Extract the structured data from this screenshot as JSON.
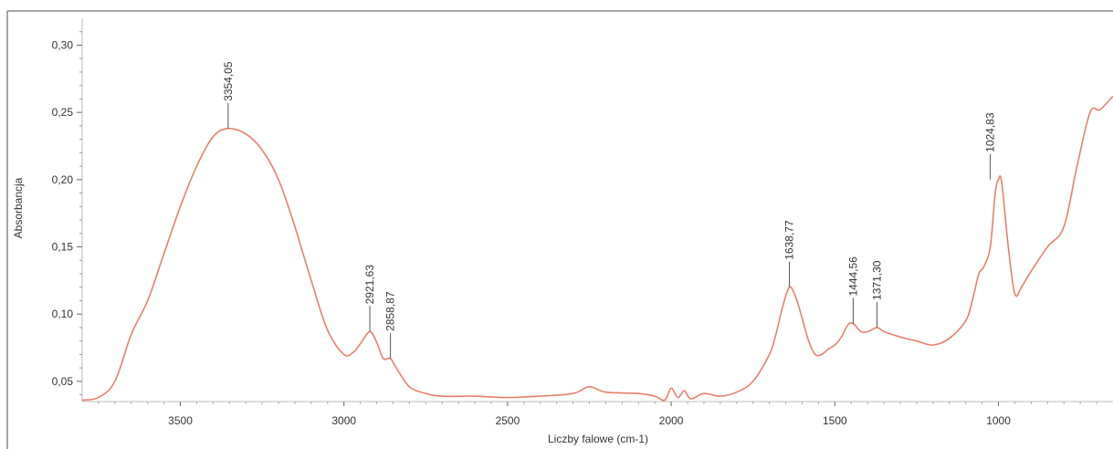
{
  "chart_data": {
    "type": "line",
    "title": "",
    "xlabel": "Liczby falowe (cm-1)",
    "ylabel": "Absorbancja",
    "xlim": [
      3800,
      650
    ],
    "ylim": [
      0.035,
      0.32
    ],
    "x_reversed": true,
    "x_ticks": [
      3500,
      3000,
      2500,
      2000,
      1500,
      1000
    ],
    "x_tick_labels": [
      "3500",
      "3000",
      "2500",
      "2000",
      "1500",
      "1000"
    ],
    "y_ticks": [
      0.05,
      0.1,
      0.15,
      0.2,
      0.25,
      0.3
    ],
    "y_tick_labels": [
      "0,05",
      "0,10",
      "0,15",
      "0,20",
      "0,25",
      "0,30"
    ],
    "grid": false,
    "line_color": "#e8806a",
    "series": [
      {
        "x": [
          3800,
          3750,
          3700,
          3650,
          3600,
          3550,
          3500,
          3450,
          3400,
          3354,
          3300,
          3250,
          3200,
          3150,
          3100,
          3050,
          3000,
          2970,
          2950,
          2921,
          2900,
          2880,
          2858,
          2840,
          2800,
          2750,
          2700,
          2600,
          2500,
          2400,
          2300,
          2250,
          2200,
          2100,
          2050,
          2020,
          2000,
          1980,
          1960,
          1940,
          1900,
          1850,
          1800,
          1750,
          1700,
          1680,
          1660,
          1639,
          1620,
          1600,
          1580,
          1560,
          1540,
          1520,
          1500,
          1480,
          1460,
          1444,
          1420,
          1400,
          1371,
          1350,
          1300,
          1250,
          1200,
          1150,
          1100,
          1080,
          1060,
          1045,
          1025,
          1010,
          1000,
          990,
          970,
          950,
          930,
          900,
          850,
          800,
          760,
          720,
          690,
          650
        ],
        "y": [
          0.036,
          0.038,
          0.05,
          0.085,
          0.11,
          0.145,
          0.18,
          0.21,
          0.232,
          0.238,
          0.234,
          0.222,
          0.2,
          0.165,
          0.125,
          0.088,
          0.07,
          0.072,
          0.078,
          0.087,
          0.079,
          0.067,
          0.067,
          0.06,
          0.046,
          0.041,
          0.039,
          0.039,
          0.038,
          0.039,
          0.041,
          0.046,
          0.042,
          0.041,
          0.039,
          0.036,
          0.045,
          0.038,
          0.043,
          0.037,
          0.041,
          0.039,
          0.042,
          0.05,
          0.07,
          0.085,
          0.105,
          0.12,
          0.113,
          0.097,
          0.08,
          0.07,
          0.07,
          0.074,
          0.077,
          0.083,
          0.092,
          0.093,
          0.087,
          0.087,
          0.09,
          0.087,
          0.083,
          0.08,
          0.077,
          0.082,
          0.095,
          0.11,
          0.13,
          0.135,
          0.15,
          0.19,
          0.2,
          0.198,
          0.15,
          0.115,
          0.12,
          0.132,
          0.15,
          0.165,
          0.21,
          0.25,
          0.252,
          0.262
        ]
      }
    ],
    "annotations": [
      {
        "x": 3354,
        "y": 0.238,
        "label": "3354,05"
      },
      {
        "x": 2921,
        "y": 0.087,
        "label": "2921,63"
      },
      {
        "x": 2858,
        "y": 0.067,
        "label": "2858,87"
      },
      {
        "x": 1639,
        "y": 0.12,
        "label": "1638,77"
      },
      {
        "x": 1444,
        "y": 0.093,
        "label": "1444,56"
      },
      {
        "x": 1371,
        "y": 0.09,
        "label": "1371,30"
      },
      {
        "x": 1025,
        "y": 0.2,
        "label": "1024,83"
      }
    ]
  }
}
